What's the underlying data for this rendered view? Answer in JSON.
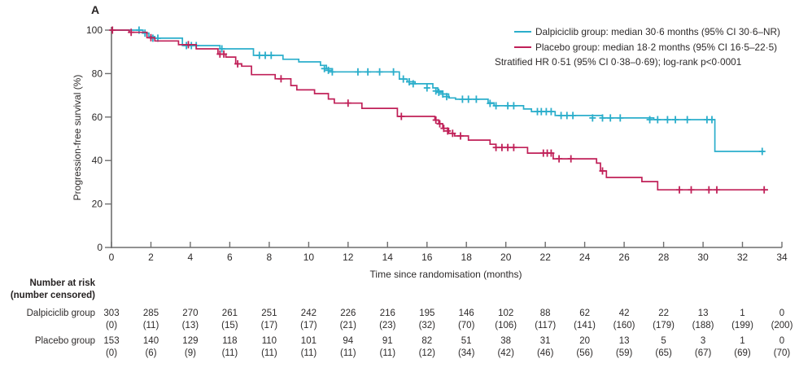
{
  "panel_label": "A",
  "legend": {
    "series": [
      {
        "label": "Dalpiciclib group: median 30·6 months (95% CI 30·6–NR)",
        "color": "#2BAECB"
      },
      {
        "label": "Placebo group: median 18·2 months (95% CI 16·5–22·5)",
        "color": "#C02058"
      }
    ],
    "note": "Stratified HR 0·51 (95% CI 0·38–0·69); log-rank p<0·0001"
  },
  "chart_data": {
    "type": "line",
    "subtype": "kaplan-meier-step",
    "title": "A",
    "xlabel": "Time since randomisation (months)",
    "ylabel": "Progression-free survival (%)",
    "xlim": [
      0,
      34
    ],
    "ylim": [
      0,
      100
    ],
    "xticks": [
      0,
      2,
      4,
      6,
      8,
      10,
      12,
      14,
      16,
      18,
      20,
      22,
      24,
      26,
      28,
      30,
      32,
      34
    ],
    "yticks": [
      0,
      20,
      40,
      60,
      80,
      100
    ],
    "grid": false,
    "legend_position": "top-right",
    "axis_color": "#6e6e6e",
    "series": [
      {
        "name": "Dalpiciclib group",
        "color": "#2BAECB",
        "median_months": "30·6",
        "median_ci": "95% CI 30·6–NR",
        "end_time": 33.1,
        "steps": [
          [
            0,
            100
          ],
          [
            1.6,
            98.6
          ],
          [
            1.9,
            97.0
          ],
          [
            2.2,
            96.3
          ],
          [
            3.6,
            92.9
          ],
          [
            5.5,
            91.4
          ],
          [
            7.2,
            88.4
          ],
          [
            8.7,
            86.6
          ],
          [
            9.5,
            85.4
          ],
          [
            10.6,
            83.8
          ],
          [
            10.9,
            82.3
          ],
          [
            11.2,
            80.8
          ],
          [
            14.6,
            77.5
          ],
          [
            15.0,
            76.2
          ],
          [
            15.4,
            75.3
          ],
          [
            16.3,
            73.4
          ],
          [
            16.55,
            72.0
          ],
          [
            16.8,
            70.6
          ],
          [
            17.1,
            68.8
          ],
          [
            17.45,
            68.2
          ],
          [
            19.1,
            66.5
          ],
          [
            19.4,
            65.2
          ],
          [
            20.9,
            63.7
          ],
          [
            21.3,
            62.5
          ],
          [
            22.5,
            60.7
          ],
          [
            24.9,
            59.6
          ],
          [
            27.5,
            58.8
          ],
          [
            30.6,
            44.2
          ]
        ],
        "censors": [
          [
            1.4,
            100
          ],
          [
            1.7,
            98.6
          ],
          [
            2.1,
            96.3
          ],
          [
            2.35,
            96.3
          ],
          [
            3.8,
            92.9
          ],
          [
            4.05,
            92.9
          ],
          [
            4.3,
            92.9
          ],
          [
            5.6,
            91.4
          ],
          [
            7.5,
            88.4
          ],
          [
            7.8,
            88.4
          ],
          [
            8.1,
            88.4
          ],
          [
            10.8,
            82.3
          ],
          [
            11.0,
            81.5
          ],
          [
            11.2,
            80.8
          ],
          [
            12.5,
            80.8
          ],
          [
            13.0,
            80.8
          ],
          [
            13.6,
            80.8
          ],
          [
            14.3,
            80.8
          ],
          [
            14.8,
            77.5
          ],
          [
            15.1,
            76.2
          ],
          [
            15.3,
            75.3
          ],
          [
            16.0,
            73.4
          ],
          [
            16.45,
            72.0
          ],
          [
            16.6,
            71.4
          ],
          [
            16.8,
            70.6
          ],
          [
            17.0,
            69.4
          ],
          [
            17.8,
            68.2
          ],
          [
            18.1,
            68.2
          ],
          [
            18.5,
            68.2
          ],
          [
            19.2,
            66.3
          ],
          [
            19.5,
            65.2
          ],
          [
            20.1,
            65.2
          ],
          [
            20.4,
            65.2
          ],
          [
            21.6,
            62.5
          ],
          [
            21.8,
            62.5
          ],
          [
            22.05,
            62.5
          ],
          [
            22.3,
            62.5
          ],
          [
            22.8,
            60.7
          ],
          [
            23.1,
            60.7
          ],
          [
            23.4,
            60.7
          ],
          [
            24.4,
            59.6
          ],
          [
            24.9,
            59.6
          ],
          [
            25.3,
            59.6
          ],
          [
            25.8,
            59.6
          ],
          [
            27.3,
            58.8
          ],
          [
            27.7,
            58.8
          ],
          [
            28.2,
            58.8
          ],
          [
            28.6,
            58.8
          ],
          [
            29.2,
            58.8
          ],
          [
            30.2,
            58.8
          ],
          [
            30.45,
            58.8
          ],
          [
            33.0,
            44.2
          ]
        ]
      },
      {
        "name": "Placebo group",
        "color": "#C02058",
        "median_months": "18·2",
        "median_ci": "95% CI 16·5–22·5",
        "end_time": 33.3,
        "steps": [
          [
            0,
            100
          ],
          [
            0.9,
            99.0
          ],
          [
            1.8,
            96.5
          ],
          [
            2.2,
            95.0
          ],
          [
            3.4,
            93.3
          ],
          [
            4.3,
            91.4
          ],
          [
            5.4,
            89.0
          ],
          [
            5.8,
            87.6
          ],
          [
            6.3,
            84.5
          ],
          [
            6.6,
            83.4
          ],
          [
            7.1,
            79.5
          ],
          [
            8.3,
            77.6
          ],
          [
            9.1,
            74.5
          ],
          [
            9.4,
            72.5
          ],
          [
            10.3,
            70.8
          ],
          [
            11.0,
            68.3
          ],
          [
            11.3,
            66.4
          ],
          [
            12.7,
            64.0
          ],
          [
            14.5,
            60.3
          ],
          [
            16.4,
            58.6
          ],
          [
            16.6,
            56.9
          ],
          [
            16.8,
            54.8
          ],
          [
            17.1,
            52.5
          ],
          [
            17.4,
            51.3
          ],
          [
            18.1,
            49.4
          ],
          [
            19.2,
            47.5
          ],
          [
            19.5,
            46.0
          ],
          [
            21.1,
            43.4
          ],
          [
            22.4,
            40.8
          ],
          [
            24.6,
            38.8
          ],
          [
            24.8,
            35.2
          ],
          [
            25.1,
            32.2
          ],
          [
            26.9,
            30.3
          ],
          [
            27.7,
            26.5
          ]
        ],
        "censors": [
          [
            0.05,
            100
          ],
          [
            1.0,
            99.0
          ],
          [
            2.0,
            96.5
          ],
          [
            3.9,
            93.3
          ],
          [
            5.5,
            89.0
          ],
          [
            5.7,
            89.0
          ],
          [
            6.4,
            84.5
          ],
          [
            8.6,
            77.6
          ],
          [
            12.0,
            66.4
          ],
          [
            14.7,
            60.3
          ],
          [
            16.45,
            58.6
          ],
          [
            16.65,
            56.9
          ],
          [
            16.85,
            54.8
          ],
          [
            17.05,
            53.6
          ],
          [
            17.3,
            52.5
          ],
          [
            17.7,
            51.3
          ],
          [
            19.5,
            46.0
          ],
          [
            19.8,
            46.0
          ],
          [
            20.1,
            46.0
          ],
          [
            20.4,
            46.0
          ],
          [
            21.9,
            43.4
          ],
          [
            22.1,
            43.4
          ],
          [
            22.3,
            43.4
          ],
          [
            22.7,
            40.8
          ],
          [
            23.3,
            40.8
          ],
          [
            24.9,
            35.2
          ],
          [
            28.8,
            26.5
          ],
          [
            29.4,
            26.5
          ],
          [
            30.3,
            26.5
          ],
          [
            30.7,
            26.5
          ],
          [
            33.1,
            26.5
          ]
        ]
      }
    ]
  },
  "risk_table": {
    "header_line1": "Number at risk",
    "header_line2": "(number censored)",
    "months": [
      0,
      2,
      4,
      6,
      8,
      10,
      12,
      14,
      16,
      18,
      20,
      22,
      24,
      26,
      28,
      30,
      32,
      34
    ],
    "rows": [
      {
        "label": "Dalpiciclib group",
        "counts": [
          "303",
          "285",
          "270",
          "261",
          "251",
          "242",
          "226",
          "216",
          "195",
          "146",
          "102",
          "88",
          "62",
          "42",
          "22",
          "13",
          "1",
          "0"
        ],
        "censored": [
          "(0)",
          "(11)",
          "(13)",
          "(15)",
          "(17)",
          "(17)",
          "(21)",
          "(23)",
          "(32)",
          "(70)",
          "(106)",
          "(117)",
          "(141)",
          "(160)",
          "(179)",
          "(188)",
          "(199)",
          "(200)"
        ]
      },
      {
        "label": "Placebo group",
        "counts": [
          "153",
          "140",
          "129",
          "118",
          "110",
          "101",
          "94",
          "91",
          "82",
          "51",
          "38",
          "31",
          "20",
          "13",
          "5",
          "3",
          "1",
          "0"
        ],
        "censored": [
          "(0)",
          "(6)",
          "(9)",
          "(11)",
          "(11)",
          "(11)",
          "(11)",
          "(11)",
          "(12)",
          "(34)",
          "(42)",
          "(46)",
          "(56)",
          "(59)",
          "(65)",
          "(67)",
          "(69)",
          "(70)"
        ]
      }
    ]
  }
}
